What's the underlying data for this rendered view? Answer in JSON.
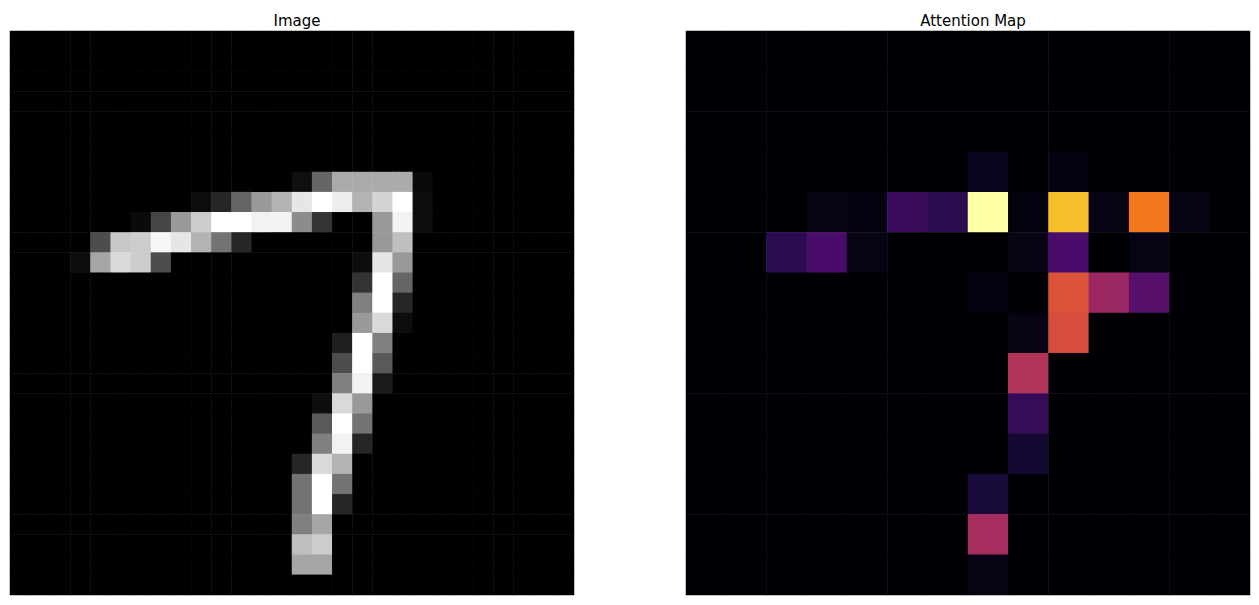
{
  "chart_data": [
    {
      "type": "heatmap",
      "title": "Image",
      "color": "gray",
      "clim": [
        0,
        1
      ],
      "tick_labels": false,
      "cells": [
        [
          0,
          0,
          0,
          0,
          0,
          0,
          0,
          0,
          0,
          0,
          0,
          0,
          0,
          0,
          0,
          0,
          0,
          0,
          0,
          0,
          0,
          0,
          0,
          0,
          0,
          0,
          0,
          0
        ],
        [
          0,
          0,
          0,
          0,
          0,
          0,
          0,
          0,
          0,
          0,
          0,
          0,
          0,
          0,
          0,
          0,
          0,
          0,
          0,
          0,
          0,
          0,
          0,
          0,
          0,
          0,
          0,
          0
        ],
        [
          0,
          0,
          0,
          0,
          0,
          0,
          0,
          0,
          0,
          0,
          0,
          0,
          0,
          0,
          0,
          0,
          0,
          0,
          0,
          0,
          0,
          0,
          0,
          0,
          0,
          0,
          0,
          0
        ],
        [
          0,
          0,
          0,
          0,
          0,
          0,
          0,
          0,
          0,
          0,
          0,
          0,
          0,
          0,
          0,
          0,
          0,
          0,
          0,
          0,
          0,
          0,
          0,
          0,
          0,
          0,
          0,
          0
        ],
        [
          0,
          0,
          0,
          0,
          0,
          0,
          0,
          0,
          0,
          0,
          0,
          0,
          0,
          0,
          0,
          0,
          0,
          0,
          0,
          0,
          0,
          0,
          0,
          0,
          0,
          0,
          0,
          0
        ],
        [
          0,
          0,
          0,
          0,
          0,
          0,
          0,
          0,
          0,
          0,
          0,
          0,
          0,
          0,
          0,
          0,
          0,
          0,
          0,
          0,
          0,
          0,
          0,
          0,
          0,
          0,
          0,
          0
        ],
        [
          0,
          0,
          0,
          0,
          0,
          0,
          0,
          0,
          0,
          0,
          0,
          0,
          0,
          0,
          0,
          0,
          0,
          0,
          0,
          0,
          0,
          0,
          0,
          0,
          0,
          0,
          0,
          0
        ],
        [
          0,
          0,
          0,
          0,
          0,
          0,
          0,
          0,
          0,
          0,
          0,
          0,
          0,
          0,
          0.06,
          0.4,
          0.67,
          0.67,
          0.67,
          0.67,
          0.04,
          0,
          0,
          0,
          0,
          0,
          0,
          0
        ],
        [
          0,
          0,
          0,
          0,
          0,
          0,
          0,
          0,
          0,
          0.05,
          0.15,
          0.4,
          0.6,
          0.7,
          0.9,
          1,
          0.93,
          0.7,
          0.83,
          1,
          0.05,
          0,
          0,
          0,
          0,
          0,
          0,
          0
        ],
        [
          0,
          0,
          0,
          0,
          0,
          0,
          0.04,
          0.27,
          0.6,
          0.8,
          1,
          1,
          0.95,
          0.95,
          0.55,
          0.2,
          0,
          0,
          0.6,
          0.95,
          0.05,
          0,
          0,
          0,
          0,
          0,
          0,
          0
        ],
        [
          0,
          0,
          0,
          0,
          0.3,
          0.78,
          0.8,
          0.97,
          0.9,
          0.7,
          0.45,
          0.15,
          0,
          0,
          0,
          0,
          0,
          0,
          0.6,
          0.75,
          0,
          0,
          0,
          0,
          0,
          0,
          0,
          0
        ],
        [
          0,
          0,
          0,
          0.05,
          0.65,
          0.85,
          0.8,
          0.3,
          0,
          0,
          0,
          0,
          0,
          0,
          0,
          0,
          0,
          0.05,
          0.9,
          0.6,
          0,
          0,
          0,
          0,
          0,
          0,
          0,
          0
        ],
        [
          0,
          0,
          0,
          0,
          0,
          0,
          0,
          0,
          0,
          0,
          0,
          0,
          0,
          0,
          0,
          0,
          0,
          0.2,
          1,
          0.4,
          0,
          0,
          0,
          0,
          0,
          0,
          0,
          0
        ],
        [
          0,
          0,
          0,
          0,
          0,
          0,
          0,
          0,
          0,
          0,
          0,
          0,
          0,
          0,
          0,
          0,
          0,
          0.5,
          1,
          0.15,
          0,
          0,
          0,
          0,
          0,
          0,
          0,
          0
        ],
        [
          0,
          0,
          0,
          0,
          0,
          0,
          0,
          0,
          0,
          0,
          0,
          0,
          0,
          0,
          0,
          0,
          0,
          0.6,
          0.85,
          0.05,
          0,
          0,
          0,
          0,
          0,
          0,
          0,
          0
        ],
        [
          0,
          0,
          0,
          0,
          0,
          0,
          0,
          0,
          0,
          0,
          0,
          0,
          0,
          0,
          0,
          0,
          0.12,
          1,
          0.5,
          0,
          0,
          0,
          0,
          0,
          0,
          0,
          0,
          0
        ],
        [
          0,
          0,
          0,
          0,
          0,
          0,
          0,
          0,
          0,
          0,
          0,
          0,
          0,
          0,
          0,
          0,
          0.3,
          1,
          0.35,
          0,
          0,
          0,
          0,
          0,
          0,
          0,
          0,
          0
        ],
        [
          0,
          0,
          0,
          0,
          0,
          0,
          0,
          0,
          0,
          0,
          0,
          0,
          0,
          0,
          0,
          0,
          0.5,
          0.95,
          0.1,
          0,
          0,
          0,
          0,
          0,
          0,
          0,
          0,
          0
        ],
        [
          0,
          0,
          0,
          0,
          0,
          0,
          0,
          0,
          0,
          0,
          0,
          0,
          0,
          0,
          0,
          0.05,
          0.85,
          0.6,
          0,
          0,
          0,
          0,
          0,
          0,
          0,
          0,
          0,
          0
        ],
        [
          0,
          0,
          0,
          0,
          0,
          0,
          0,
          0,
          0,
          0,
          0,
          0,
          0,
          0,
          0,
          0.35,
          1,
          0.45,
          0,
          0,
          0,
          0,
          0,
          0,
          0,
          0,
          0,
          0
        ],
        [
          0,
          0,
          0,
          0,
          0,
          0,
          0,
          0,
          0,
          0,
          0,
          0,
          0,
          0,
          0,
          0.5,
          0.95,
          0.15,
          0,
          0,
          0,
          0,
          0,
          0,
          0,
          0,
          0,
          0
        ],
        [
          0,
          0,
          0,
          0,
          0,
          0,
          0,
          0,
          0,
          0,
          0,
          0,
          0,
          0,
          0.15,
          0.85,
          0.7,
          0,
          0,
          0,
          0,
          0,
          0,
          0,
          0,
          0,
          0,
          0
        ],
        [
          0,
          0,
          0,
          0,
          0,
          0,
          0,
          0,
          0,
          0,
          0,
          0,
          0,
          0,
          0.45,
          1,
          0.45,
          0,
          0,
          0,
          0,
          0,
          0,
          0,
          0,
          0,
          0,
          0
        ],
        [
          0,
          0,
          0,
          0,
          0,
          0,
          0,
          0,
          0,
          0,
          0,
          0,
          0,
          0,
          0.45,
          1,
          0.15,
          0,
          0,
          0,
          0,
          0,
          0,
          0,
          0,
          0,
          0,
          0
        ],
        [
          0,
          0,
          0,
          0,
          0,
          0,
          0,
          0,
          0,
          0,
          0,
          0,
          0,
          0,
          0.5,
          0.65,
          0,
          0,
          0,
          0,
          0,
          0,
          0,
          0,
          0,
          0,
          0,
          0
        ],
        [
          0,
          0,
          0,
          0,
          0,
          0,
          0,
          0,
          0,
          0,
          0,
          0,
          0,
          0,
          0.75,
          0.8,
          0,
          0,
          0,
          0,
          0,
          0,
          0,
          0,
          0,
          0,
          0,
          0
        ],
        [
          0,
          0,
          0,
          0,
          0,
          0,
          0,
          0,
          0,
          0,
          0,
          0,
          0,
          0,
          0.65,
          0.65,
          0,
          0,
          0,
          0,
          0,
          0,
          0,
          0,
          0,
          0,
          0,
          0
        ],
        [
          0,
          0,
          0,
          0,
          0,
          0,
          0,
          0,
          0,
          0,
          0,
          0,
          0,
          0,
          0,
          0,
          0,
          0,
          0,
          0,
          0,
          0,
          0,
          0,
          0,
          0,
          0,
          0
        ]
      ]
    },
    {
      "type": "heatmap",
      "title": "Attention Map",
      "color": "inferno",
      "clim": [
        0,
        1
      ],
      "tick_labels": false,
      "cells": [
        [
          0,
          0,
          0,
          0,
          0,
          0,
          0,
          0,
          0,
          0,
          0,
          0,
          0,
          0
        ],
        [
          0,
          0,
          0,
          0,
          0,
          0,
          0,
          0,
          0,
          0,
          0,
          0,
          0,
          0
        ],
        [
          0,
          0,
          0,
          0,
          0,
          0,
          0,
          0,
          0,
          0,
          0,
          0,
          0,
          0
        ],
        [
          0,
          0,
          0,
          0,
          0,
          0,
          0,
          0.05,
          0,
          0.02,
          0,
          0,
          0,
          0
        ],
        [
          0,
          0,
          0,
          0.03,
          0.02,
          0.18,
          0.15,
          1,
          0.02,
          0.85,
          0.03,
          0.7,
          0.03,
          0
        ],
        [
          0,
          0,
          0.15,
          0.22,
          0.03,
          0,
          0,
          0,
          0.03,
          0.22,
          0,
          0.03,
          0,
          0
        ],
        [
          0,
          0,
          0,
          0,
          0,
          0,
          0,
          0.02,
          0,
          0.6,
          0.42,
          0.25,
          0,
          0
        ],
        [
          0,
          0,
          0,
          0,
          0,
          0,
          0,
          0,
          0.03,
          0.58,
          0,
          0,
          0,
          0
        ],
        [
          0,
          0,
          0,
          0,
          0,
          0,
          0,
          0,
          0.48,
          0,
          0,
          0,
          0,
          0
        ],
        [
          0,
          0,
          0,
          0,
          0,
          0,
          0,
          0,
          0.17,
          0,
          0,
          0,
          0,
          0
        ],
        [
          0,
          0,
          0,
          0,
          0,
          0,
          0,
          0,
          0.08,
          0,
          0,
          0,
          0,
          0
        ],
        [
          0,
          0,
          0,
          0,
          0,
          0,
          0,
          0.1,
          0,
          0,
          0,
          0,
          0,
          0
        ],
        [
          0,
          0,
          0,
          0,
          0,
          0,
          0,
          0.45,
          0,
          0,
          0,
          0,
          0,
          0
        ],
        [
          0,
          0,
          0,
          0,
          0,
          0,
          0,
          0.03,
          0,
          0,
          0,
          0,
          0,
          0
        ]
      ]
    }
  ]
}
